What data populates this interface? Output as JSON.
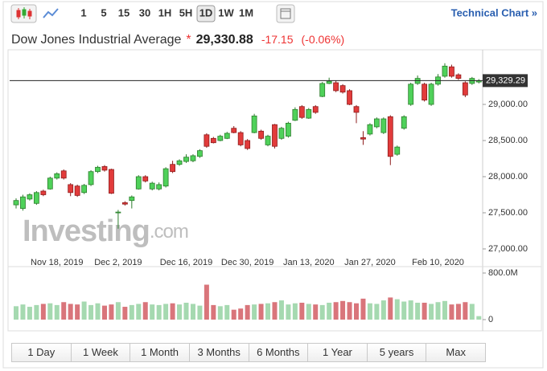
{
  "toolbar": {
    "intervals": [
      "1",
      "5",
      "15",
      "30",
      "1H",
      "5H",
      "1D",
      "1W",
      "1M"
    ],
    "active_interval": 6,
    "link": "Technical Chart »"
  },
  "header": {
    "title": "Dow Jones Industrial Average",
    "marker": "*",
    "price": "29,330.88",
    "change": "-17.15",
    "change_pct": "(-0.06%)"
  },
  "watermark": {
    "brand": "Investing",
    "suffix": ".com"
  },
  "chart_data": {
    "type": "candlestick",
    "categories": [
      null,
      null,
      null,
      null,
      null,
      null,
      "Nov 18, 2019",
      null,
      null,
      null,
      null,
      null,
      null,
      null,
      null,
      "Dec 2, 2019",
      null,
      null,
      null,
      null,
      null,
      null,
      null,
      null,
      null,
      "Dec 16, 2019",
      null,
      null,
      null,
      null,
      null,
      null,
      null,
      null,
      "Dec 30, 2019",
      null,
      null,
      null,
      null,
      null,
      null,
      null,
      null,
      "Jan 13, 2020",
      null,
      null,
      null,
      null,
      null,
      null,
      null,
      null,
      "Jan 27, 2020",
      null,
      null,
      null,
      null,
      null,
      null,
      null,
      null,
      null,
      "Feb 10, 2020",
      null,
      null,
      null,
      null,
      null,
      null
    ],
    "open": [
      27610,
      27560,
      27690,
      27630,
      27800,
      27830,
      27980,
      28080,
      27890,
      27870,
      27780,
      27890,
      28070,
      28140,
      28100,
      27500,
      27640,
      27670,
      27830,
      28000,
      27830,
      27830,
      27870,
      28170,
      28170,
      28210,
      28220,
      28280,
      28580,
      28530,
      28500,
      28530,
      28670,
      28610,
      28500,
      28610,
      28630,
      28440,
      28720,
      28530,
      28560,
      28780,
      28970,
      28810,
      28970,
      29110,
      29290,
      29300,
      29260,
      29190,
      28970,
      28540,
      28590,
      28690,
      28610,
      28830,
      28310,
      28670,
      29000,
      29290,
      29280,
      29000,
      29280,
      29390,
      29520,
      29410,
      29300,
      29290,
      29310
    ],
    "close": [
      27670,
      27720,
      27750,
      27780,
      27750,
      27980,
      28040,
      27980,
      27780,
      27740,
      27880,
      28070,
      28130,
      28090,
      27770,
      27510,
      27620,
      27720,
      28000,
      27940,
      27910,
      27890,
      28110,
      28070,
      28220,
      28270,
      28290,
      28360,
      28420,
      28470,
      28560,
      28600,
      28610,
      28440,
      28390,
      28840,
      28530,
      28560,
      28420,
      28670,
      28740,
      28930,
      28820,
      28930,
      28890,
      29290,
      29320,
      29190,
      29170,
      29000,
      28890,
      28520,
      28720,
      28800,
      28800,
      28280,
      28410,
      28830,
      29280,
      29360,
      29060,
      29280,
      29380,
      29530,
      29390,
      29360,
      29130,
      29360,
      29330
    ],
    "high": [
      27700,
      27750,
      27770,
      27800,
      27820,
      28000,
      28060,
      28100,
      27910,
      27890,
      27900,
      28090,
      28150,
      28160,
      28110,
      27540,
      27660,
      27740,
      28020,
      28020,
      27930,
      27920,
      28130,
      28220,
      28240,
      28310,
      28310,
      28380,
      28600,
      28550,
      28580,
      28620,
      28700,
      28630,
      28520,
      28870,
      28650,
      28580,
      28730,
      28690,
      28760,
      28960,
      28990,
      28950,
      28990,
      29310,
      29370,
      29330,
      29280,
      29210,
      28990,
      28630,
      28740,
      28820,
      28820,
      28850,
      28430,
      28850,
      29300,
      29400,
      29300,
      29300,
      29420,
      29570,
      29550,
      29430,
      29320,
      29380,
      29350
    ],
    "low": [
      27560,
      27530,
      27670,
      27610,
      27730,
      27820,
      27960,
      27960,
      27730,
      27720,
      27760,
      27870,
      28050,
      28070,
      27760,
      27280,
      27600,
      27560,
      27820,
      27920,
      27810,
      27810,
      27850,
      28050,
      28150,
      28190,
      28200,
      28260,
      28400,
      28460,
      28490,
      28520,
      28600,
      28420,
      28370,
      28600,
      28510,
      28420,
      28390,
      28510,
      28540,
      28770,
      28800,
      28800,
      28870,
      29100,
      29280,
      29170,
      29150,
      28990,
      28740,
      28440,
      28570,
      28670,
      28590,
      28160,
      28290,
      28650,
      28980,
      29270,
      29040,
      28980,
      29260,
      29370,
      29370,
      29340,
      29100,
      29270,
      29290
    ],
    "up_color": "#4fd15a",
    "up_edge": "#2c7d2c",
    "down_color": "#e23b3b",
    "down_edge": "#8e1c1c",
    "ylim": [
      26833,
      29667
    ],
    "yticks": [
      {
        "value": 29000,
        "label": "29,000.00"
      },
      {
        "value": 28500,
        "label": "28,500.00"
      },
      {
        "value": 28000,
        "label": "28,000.00"
      },
      {
        "value": 27500,
        "label": "27,500.00"
      },
      {
        "value": 27000,
        "label": "27,000.00"
      }
    ],
    "last_price": {
      "value": 29329.29,
      "label": "29,329.29"
    },
    "volume": {
      "values": [
        230,
        260,
        220,
        250,
        270,
        280,
        250,
        300,
        270,
        260,
        310,
        250,
        280,
        240,
        260,
        300,
        220,
        250,
        270,
        300,
        260,
        250,
        270,
        280,
        260,
        290,
        270,
        240,
        600,
        250,
        230,
        250,
        170,
        190,
        250,
        260,
        270,
        280,
        300,
        330,
        260,
        280,
        290,
        270,
        260,
        250,
        290,
        300,
        320,
        300,
        280,
        360,
        280,
        270,
        330,
        380,
        350,
        310,
        330,
        290,
        290,
        270,
        300,
        320,
        260,
        270,
        300,
        270,
        60
      ],
      "ylim": [
        0,
        800
      ],
      "yticks": [
        {
          "value": 800,
          "label": "800.0M"
        },
        0
      ],
      "up_color": "#a5d9b0",
      "down_color": "#d9757b"
    }
  },
  "ranges": [
    "1 Day",
    "1 Week",
    "1 Month",
    "3 Months",
    "6 Months",
    "1 Year",
    "5 years",
    "Max"
  ]
}
